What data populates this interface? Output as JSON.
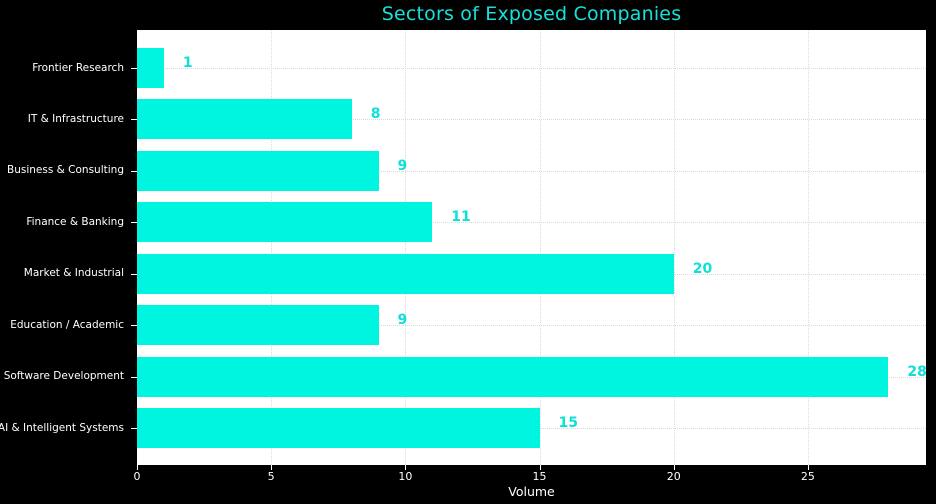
{
  "chart_data": {
    "type": "bar",
    "orientation": "horizontal",
    "title": "Sectors of Exposed Companies",
    "categories": [
      "Frontier Research",
      "IT & Infrastructure",
      "Business & Consulting",
      "Finance & Banking",
      "Market & Industrial",
      "Education / Academic",
      "Software Development",
      "AI & Intelligent Systems"
    ],
    "values": [
      1,
      8,
      9,
      11,
      20,
      9,
      28,
      15
    ],
    "xlabel": "Volume",
    "x_ticks": [
      0,
      5,
      10,
      15,
      20,
      25
    ],
    "xlim": [
      0,
      29.4
    ],
    "grid": true,
    "legend": "none",
    "colors": {
      "figure_background": "#000000",
      "plot_background": "#ffffff",
      "bar": "#00f5e1",
      "title": "#16e0da",
      "value_label": "#0ee0d8",
      "axis_text": "#ffffff",
      "grid": "#d9d9d9",
      "tick": "#ffffff"
    }
  }
}
